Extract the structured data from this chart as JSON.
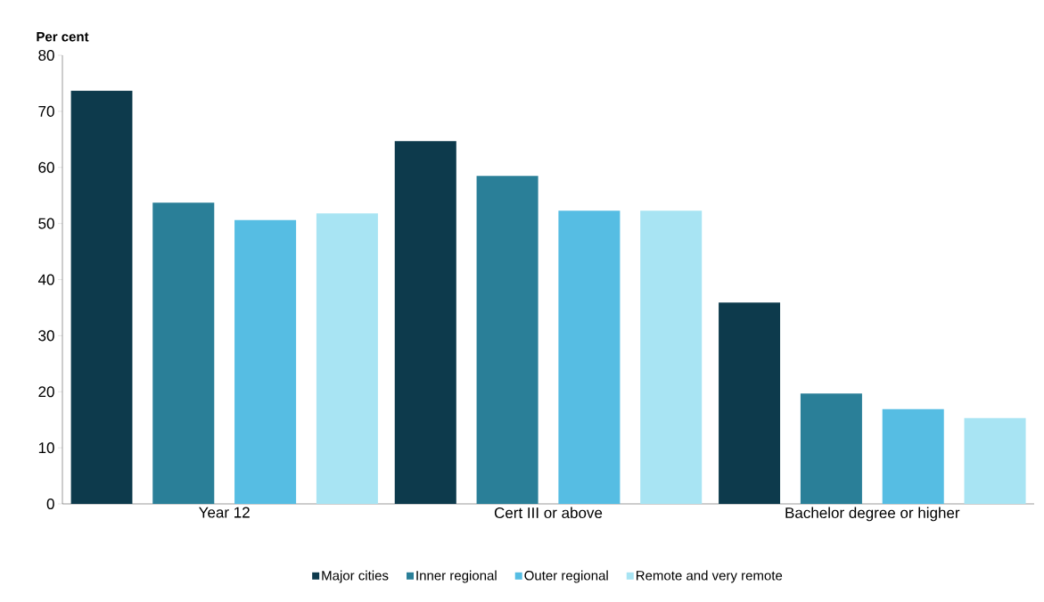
{
  "chart_data": {
    "type": "bar",
    "ylabel": "Per cent",
    "categories": [
      "Year 12",
      "Cert III or above",
      "Bachelor degree or higher"
    ],
    "series": [
      {
        "name": "Major cities",
        "color": "#0d3a4c",
        "values": [
          73.7,
          64.7,
          35.9
        ]
      },
      {
        "name": "Inner regional",
        "color": "#2a7f98",
        "values": [
          53.7,
          58.5,
          19.7
        ]
      },
      {
        "name": "Outer regional",
        "color": "#56bde3",
        "values": [
          50.6,
          52.3,
          16.9
        ]
      },
      {
        "name": "Remote and very remote",
        "color": "#a8e4f3",
        "values": [
          51.8,
          52.3,
          15.3
        ]
      }
    ],
    "ylim": [
      0,
      80
    ],
    "yticks": [
      0,
      10,
      20,
      30,
      40,
      50,
      60,
      70,
      80
    ],
    "grid": false,
    "legend": "bottom"
  }
}
